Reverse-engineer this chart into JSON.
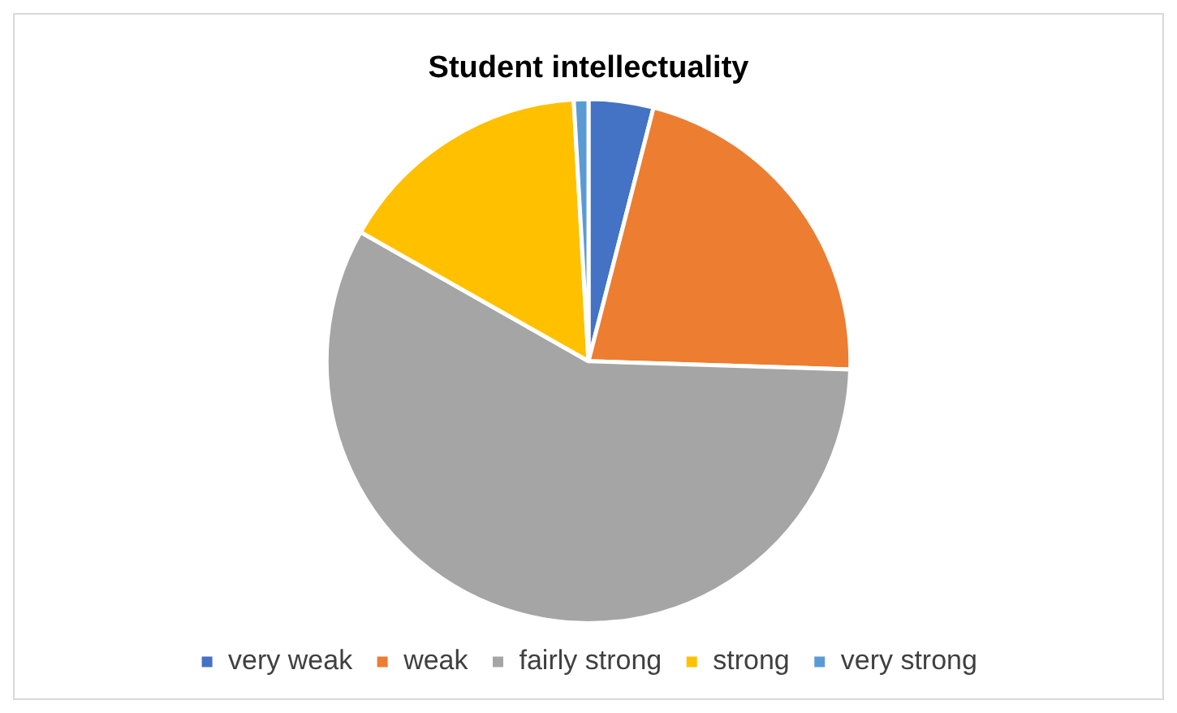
{
  "chart_data": {
    "type": "pie",
    "title": "Student intellectuality",
    "categories": [
      "very weak",
      "weak",
      "fairly strong",
      "strong",
      "very strong"
    ],
    "values": [
      4,
      21.5,
      57.7,
      15.9,
      0.9
    ],
    "colors": [
      "#4472c4",
      "#ed7d31",
      "#a5a5a5",
      "#ffc000",
      "#5b9bd5"
    ],
    "legend": "bottom"
  }
}
